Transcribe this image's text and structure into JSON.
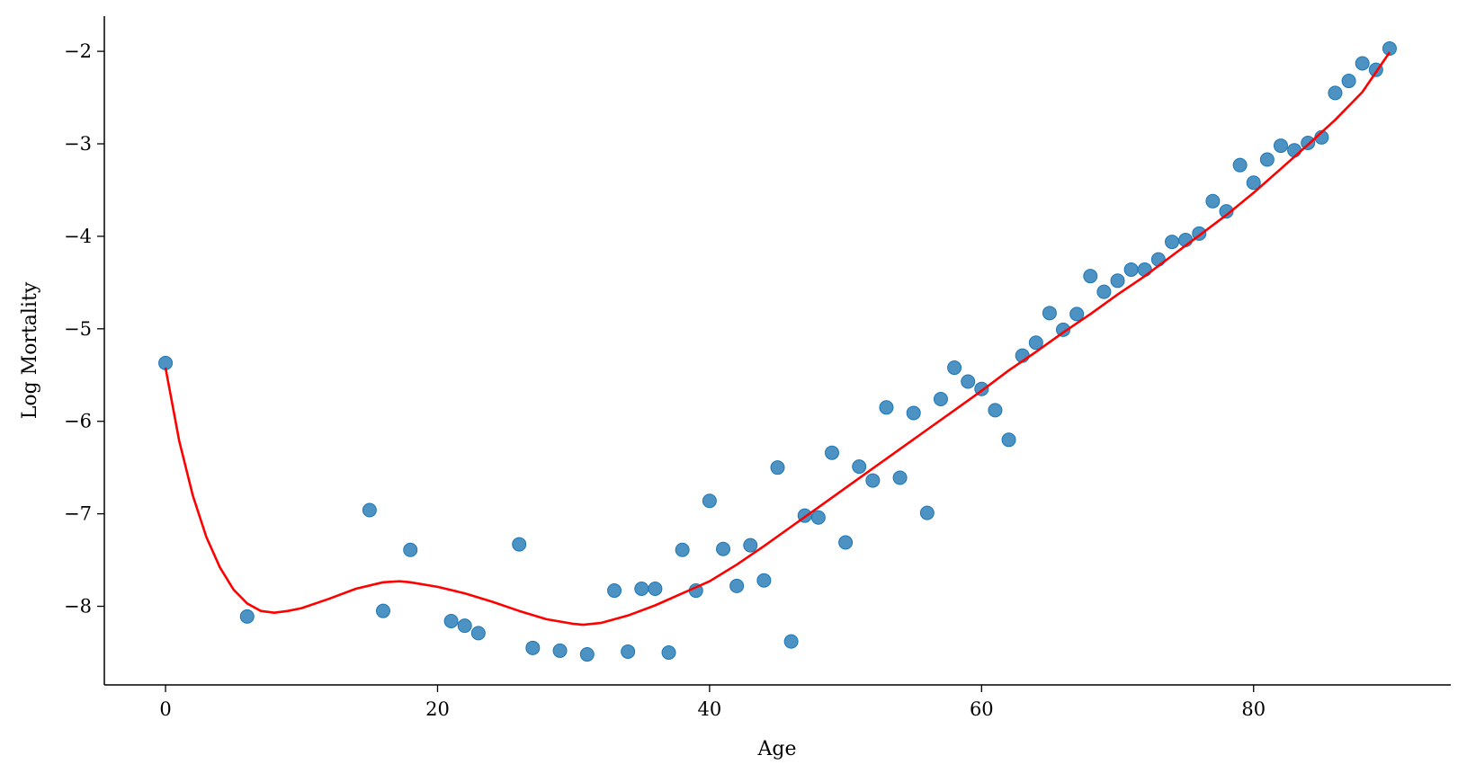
{
  "chart_data": {
    "type": "scatter",
    "title": "",
    "xlabel": "Age",
    "ylabel": "Log Mortality",
    "xlim": [
      -4.5,
      94.5
    ],
    "ylim": [
      -8.85,
      -1.62
    ],
    "xticks": [
      0,
      20,
      40,
      60,
      80
    ],
    "yticks": [
      -2,
      -3,
      -4,
      -5,
      -6,
      -7,
      -8
    ],
    "xtick_labels": [
      "0",
      "20",
      "40",
      "60",
      "80"
    ],
    "ytick_labels": [
      "−2",
      "−3",
      "−4",
      "−5",
      "−6",
      "−7",
      "−8"
    ],
    "grid": false,
    "colors": {
      "points": "#1f77b4",
      "fit_line": "#ff0000"
    },
    "series": [
      {
        "type": "scatter",
        "x": [
          0,
          6,
          15,
          16,
          18,
          21,
          22,
          23,
          26,
          27,
          29,
          31,
          33,
          34,
          35,
          36,
          37,
          38,
          39,
          40,
          41,
          42,
          43,
          44,
          45,
          46,
          47,
          48,
          49,
          50,
          51,
          52,
          53,
          54,
          55,
          56,
          57,
          58,
          59,
          60,
          61,
          62,
          63,
          64,
          65,
          66,
          67,
          68,
          69,
          70,
          71,
          72,
          73,
          74,
          75,
          76,
          77,
          78,
          79,
          80,
          81,
          82,
          83,
          84,
          85,
          86,
          87,
          88,
          89,
          90
        ],
        "y": [
          -5.37,
          -8.11,
          -6.96,
          -8.05,
          -7.39,
          -8.16,
          -8.21,
          -8.29,
          -7.33,
          -8.45,
          -8.48,
          -8.52,
          -7.83,
          -8.49,
          -7.81,
          -7.81,
          -8.5,
          -7.39,
          -7.83,
          -6.86,
          -7.38,
          -7.78,
          -7.34,
          -7.72,
          -6.5,
          -8.38,
          -7.02,
          -7.04,
          -6.34,
          -7.31,
          -6.49,
          -6.64,
          -5.85,
          -6.61,
          -5.91,
          -6.99,
          -5.76,
          -5.42,
          -5.57,
          -5.65,
          -5.88,
          -6.2,
          -5.29,
          -5.15,
          -4.83,
          -5.01,
          -4.84,
          -4.43,
          -4.6,
          -4.48,
          -4.36,
          -4.36,
          -4.25,
          -4.06,
          -4.04,
          -3.97,
          -3.62,
          -3.73,
          -3.23,
          -3.42,
          -3.17,
          -3.02,
          -3.07,
          -2.99,
          -2.93,
          -2.45,
          -2.32,
          -2.13,
          -2.2,
          -1.97
        ]
      },
      {
        "type": "line",
        "x": [
          0,
          1,
          2,
          3,
          4,
          5,
          6,
          7,
          8,
          9,
          10,
          12,
          14,
          16,
          17.2,
          18,
          20,
          22,
          24,
          26,
          28,
          30,
          30.7,
          32,
          34,
          36,
          38,
          40,
          42,
          44,
          46,
          48,
          50,
          52,
          54,
          56,
          58,
          60,
          62,
          64,
          66,
          68,
          70,
          72,
          74,
          76,
          78,
          80,
          82,
          84,
          86,
          88,
          90
        ],
        "y": [
          -5.42,
          -6.21,
          -6.8,
          -7.25,
          -7.58,
          -7.82,
          -7.97,
          -8.05,
          -8.07,
          -8.05,
          -8.02,
          -7.92,
          -7.81,
          -7.74,
          -7.73,
          -7.74,
          -7.79,
          -7.86,
          -7.95,
          -8.05,
          -8.14,
          -8.19,
          -8.2,
          -8.18,
          -8.1,
          -7.99,
          -7.86,
          -7.73,
          -7.55,
          -7.35,
          -7.14,
          -6.93,
          -6.72,
          -6.51,
          -6.3,
          -6.09,
          -5.88,
          -5.67,
          -5.45,
          -5.25,
          -5.04,
          -4.84,
          -4.63,
          -4.43,
          -4.21,
          -3.99,
          -3.77,
          -3.53,
          -3.27,
          -3.01,
          -2.74,
          -2.44,
          -2.01
        ]
      }
    ]
  }
}
